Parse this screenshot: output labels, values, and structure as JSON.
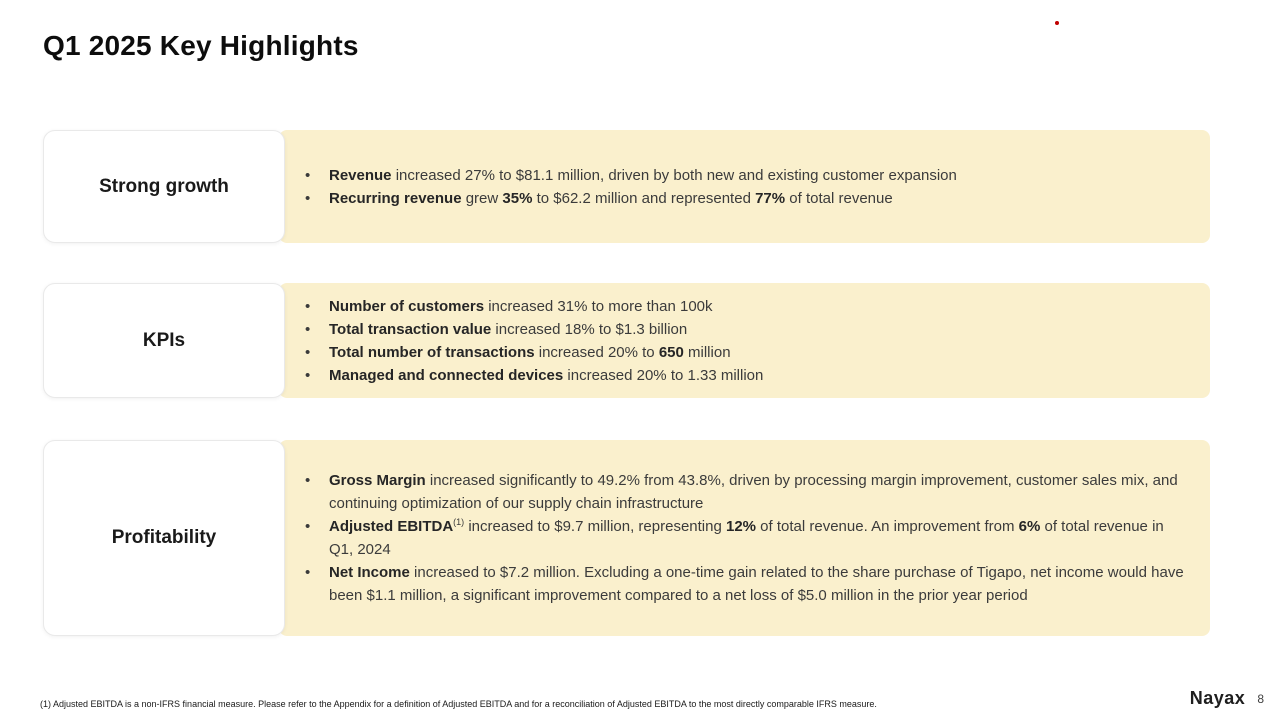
{
  "slide": {
    "title": "Q1 2025 Key Highlights",
    "footnote": "(1)    Adjusted EBITDA is a non-IFRS financial measure. Please refer to the Appendix for a definition of Adjusted EBITDA and for a reconciliation of Adjusted EBITDA to the most directly comparable IFRS measure.",
    "logo": "Nayax",
    "page_number": "8",
    "colors": {
      "panel_bg": "#faf0cd",
      "accent_dot": "#c00000"
    },
    "sections": [
      {
        "label": "Strong growth",
        "bullets": [
          [
            {
              "t": "Revenue",
              "b": true
            },
            {
              "t": " increased 27% to $81.1 million, driven by both new and existing customer expansion"
            }
          ],
          [
            {
              "t": "Recurring revenue",
              "b": true
            },
            {
              "t": " grew "
            },
            {
              "t": "35%",
              "b": true
            },
            {
              "t": " to $62.2 million and represented "
            },
            {
              "t": "77%",
              "b": true
            },
            {
              "t": " of total revenue"
            }
          ]
        ]
      },
      {
        "label": "KPIs",
        "bullets": [
          [
            {
              "t": "Number of customers",
              "b": true
            },
            {
              "t": " increased 31% to more than 100k"
            }
          ],
          [
            {
              "t": "Total transaction value",
              "b": true
            },
            {
              "t": " increased 18% to $1.3 billion"
            }
          ],
          [
            {
              "t": "Total number of transactions",
              "b": true
            },
            {
              "t": " increased 20% to "
            },
            {
              "t": "650",
              "b": true
            },
            {
              "t": " million"
            }
          ],
          [
            {
              "t": "Managed and connected devices",
              "b": true
            },
            {
              "t": " increased 20% to 1.33 million"
            }
          ]
        ]
      },
      {
        "label": "Profitability",
        "bullets": [
          [
            {
              "t": "Gross Margin",
              "b": true
            },
            {
              "t": " increased significantly to 49.2% from 43.8%, driven by processing margin improvement, customer sales mix, and continuing optimization of our supply chain infrastructure"
            }
          ],
          [
            {
              "t": "Adjusted EBITDA",
              "b": true
            },
            {
              "t": "(1)",
              "sup": true
            },
            {
              "t": " increased to $9.7 million, representing "
            },
            {
              "t": "12%",
              "b": true
            },
            {
              "t": " of total revenue. An improvement from "
            },
            {
              "t": "6%",
              "b": true
            },
            {
              "t": " of total revenue in Q1, 2024"
            }
          ],
          [
            {
              "t": "Net Income",
              "b": true
            },
            {
              "t": " increased to $7.2 million. Excluding a one-time gain related to the share purchase of Tigapo, net income would have been $1.1 million, a significant improvement compared to a net loss of $5.0 million in the prior year period"
            }
          ]
        ]
      }
    ]
  }
}
